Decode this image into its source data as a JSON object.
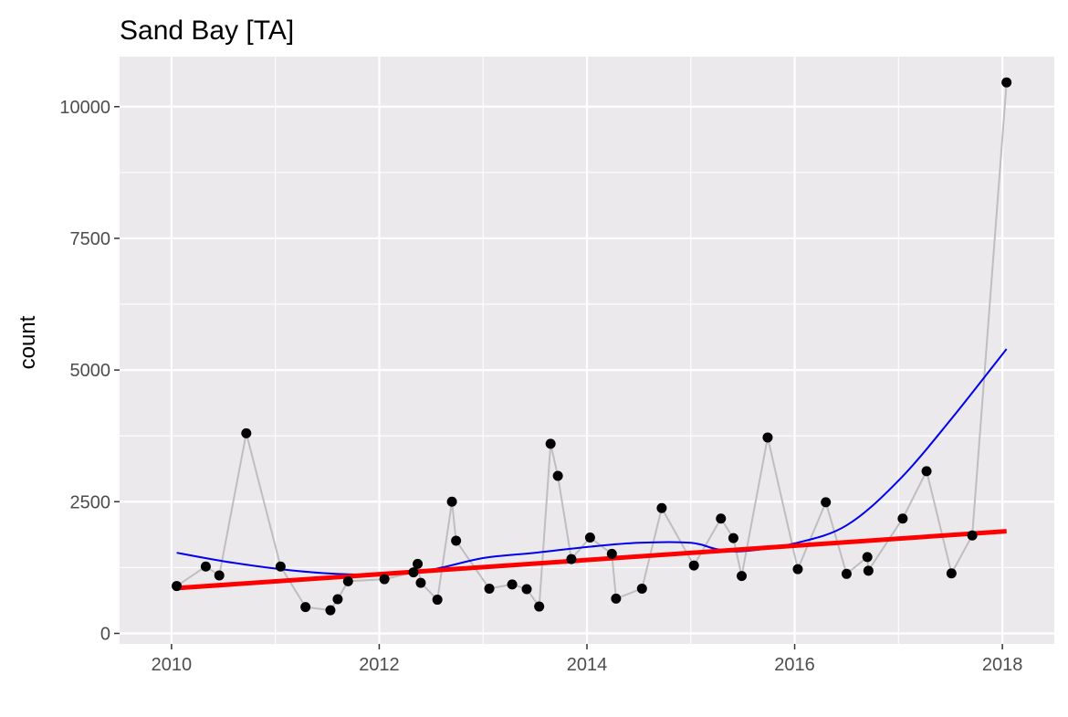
{
  "chart_data": {
    "type": "line",
    "title": "Sand Bay  [TA]",
    "xlabel": "",
    "ylabel": "count",
    "xlim": [
      2009.5,
      2018.5
    ],
    "ylim": [
      -200,
      10950
    ],
    "x_ticks": [
      2010,
      2012,
      2014,
      2016,
      2018
    ],
    "x_tick_labels": [
      "2010",
      "2012",
      "2014",
      "2016",
      "2018"
    ],
    "y_ticks": [
      0,
      2500,
      5000,
      7500,
      10000
    ],
    "y_tick_labels": [
      "0",
      "2500",
      "5000",
      "7500",
      "10000"
    ],
    "grid": true,
    "legend": "none",
    "colors": {
      "panel": "#EBE9EC",
      "grid_major": "#FFFFFF",
      "observations_line": "#BEBEBE",
      "points": "#000000",
      "smooth": "#0000EE",
      "trend": "#FF0000"
    },
    "series": [
      {
        "kind": "observations",
        "x": [
          2010.05,
          2010.33,
          2010.46,
          2010.72,
          2011.05,
          2011.29,
          2011.53,
          2011.6,
          2011.7,
          2012.05,
          2012.33,
          2012.37,
          2012.4,
          2012.56,
          2012.7,
          2012.74,
          2013.06,
          2013.28,
          2013.42,
          2013.54,
          2013.65,
          2013.72,
          2013.85,
          2014.03,
          2014.24,
          2014.28,
          2014.53,
          2014.72,
          2015.03,
          2015.29,
          2015.41,
          2015.49,
          2015.74,
          2016.03,
          2016.3,
          2016.5,
          2016.7,
          2016.71,
          2017.04,
          2017.27,
          2017.51,
          2017.71,
          2018.04
        ],
        "y": [
          900,
          1270,
          1100,
          3800,
          1270,
          500,
          440,
          650,
          990,
          1030,
          1160,
          1320,
          960,
          640,
          2500,
          1760,
          850,
          930,
          840,
          510,
          3600,
          2990,
          1410,
          1820,
          1510,
          660,
          850,
          2380,
          1290,
          2180,
          1810,
          1090,
          3720,
          1220,
          2490,
          1130,
          1450,
          1190,
          2180,
          3080,
          1140,
          1860,
          10460
        ]
      },
      {
        "kind": "smooth",
        "x": [
          2010.05,
          2010.5,
          2011.0,
          2011.5,
          2012.0,
          2012.5,
          2013.0,
          2013.5,
          2014.0,
          2014.5,
          2015.0,
          2015.25,
          2015.5,
          2016.0,
          2016.5,
          2017.0,
          2017.5,
          2018.04
        ],
        "y": [
          1530,
          1370,
          1230,
          1140,
          1120,
          1210,
          1430,
          1530,
          1640,
          1720,
          1720,
          1600,
          1560,
          1710,
          2050,
          2900,
          4050,
          5400
        ]
      },
      {
        "kind": "trend",
        "x": [
          2010.05,
          2018.04
        ],
        "y": [
          860,
          1940
        ]
      }
    ]
  }
}
